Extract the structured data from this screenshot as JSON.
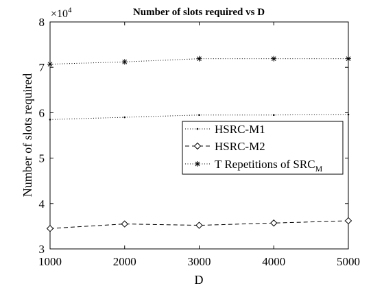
{
  "chart_data": {
    "type": "line",
    "title": "Number of slots required vs D",
    "xlabel": "D",
    "ylabel": "Number of slots required",
    "x": [
      1000,
      2000,
      3000,
      4000,
      5000
    ],
    "xlim": [
      1000,
      5000
    ],
    "ylim": [
      30000,
      80000
    ],
    "xticks": [
      "1000",
      "2000",
      "3000",
      "4000",
      "5000"
    ],
    "yticks": [
      "3",
      "4",
      "5",
      "6",
      "7",
      "8"
    ],
    "y_exponent_base": "×10",
    "y_exponent_power": "4",
    "grid": false,
    "legend_position": "center-right",
    "series": [
      {
        "name": "HSRC-M1",
        "marker": "point",
        "linestyle": "dotted",
        "color": "#000000",
        "values": [
          58500,
          59000,
          59500,
          59500,
          59600
        ]
      },
      {
        "name": "HSRC-M2",
        "marker": "diamond",
        "linestyle": "dashed",
        "color": "#000000",
        "values": [
          34500,
          35500,
          35200,
          35700,
          36200
        ]
      },
      {
        "name": "T Repetitions of SRC",
        "name_subscript": "M",
        "marker": "asterisk",
        "linestyle": "dotted",
        "color": "#000000",
        "values": [
          70700,
          71200,
          71900,
          71900,
          71900
        ]
      }
    ]
  }
}
